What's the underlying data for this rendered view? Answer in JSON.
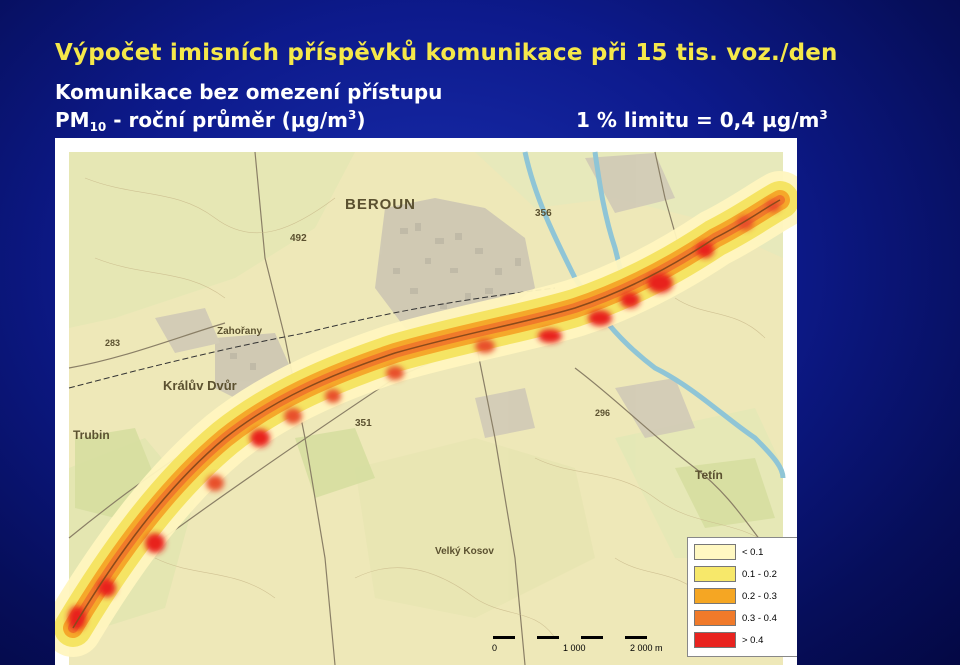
{
  "slide": {
    "title": "Výpočet imisních příspěvků komunikace při 15 tis. voz./den",
    "subtitle": "Komunikace bez omezení přístupu",
    "pm_prefix": "PM",
    "pm_subscript": "10",
    "pm_suffix": " - roční průměr (µg/m",
    "pm_sup": "3",
    "pm_close": ")",
    "limit_text": "1 % limitu = 0,4 µg/m",
    "limit_sup": "3"
  },
  "map": {
    "places": {
      "beroun": "BEROUN",
      "kraluv_dvur": "Králův Dvůr",
      "trubin": "Trubin",
      "zahorany": "Zahořany",
      "hill_492": "492",
      "veliky_kosov": "Velký Kosov",
      "tetin": "Tetín",
      "hill_356": "356",
      "hill_351": "351",
      "hill_283": "283",
      "hill_296": "296"
    },
    "legend": [
      {
        "label": "< 0.1",
        "color": "#fff8c2"
      },
      {
        "label": "0.1 - 0.2",
        "color": "#f7e86a"
      },
      {
        "label": "0.2 - 0.3",
        "color": "#f5a623"
      },
      {
        "label": "0.3 - 0.4",
        "color": "#f07a2a"
      },
      {
        "label": "> 0.4",
        "color": "#e8231f"
      }
    ],
    "scale": {
      "tick0": "0",
      "tick1": "1 000",
      "tick2": "2 000 m"
    }
  }
}
